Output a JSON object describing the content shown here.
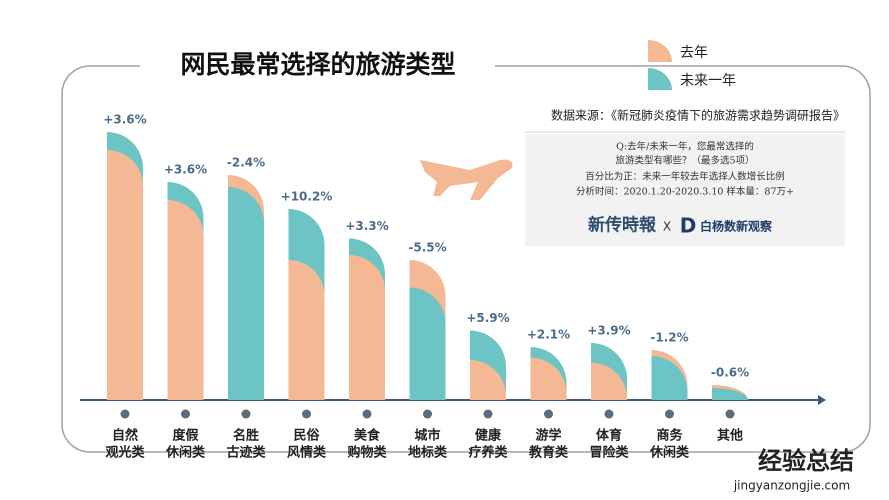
{
  "chart_data": {
    "type": "bar",
    "title": "网民最常选择的旅游类型",
    "source": "数据来源：《新冠肺炎疫情下的旅游需求趋势调研报告》",
    "notes": [
      "Q:去年/未来一年，您最常选择的",
      "旅游类型有哪些？（最多选5项）",
      "百分比为正：未来一年较去年选择人数增长比例",
      "分析时间：2020.1.20-2020.3.10   样本量：87万+"
    ],
    "logos": {
      "left": "新传時報",
      "joiner": "X",
      "mark": "D",
      "right": "白杨数新观察"
    },
    "watermark": {
      "main": "经验总结",
      "url": "jingyanzongjie.com"
    },
    "categories": [
      [
        "自然",
        "观光类"
      ],
      [
        "度假",
        "休闲类"
      ],
      [
        "名胜",
        "古迹类"
      ],
      [
        "民俗",
        "风情类"
      ],
      [
        "美食",
        "购物类"
      ],
      [
        "城市",
        "地标类"
      ],
      [
        "健康",
        "疗养类"
      ],
      [
        "游学",
        "教育类"
      ],
      [
        "体育",
        "冒险类"
      ],
      [
        "商务",
        "休闲类"
      ],
      [
        "其他"
      ]
    ],
    "series": [
      {
        "name": "去年",
        "color": "#f5b894",
        "values": [
          50.0,
          40.0,
          45.0,
          28.0,
          29.0,
          28.0,
          8.0,
          8.5,
          7.5,
          10.0,
          3.0
        ]
      },
      {
        "name": "未来一年",
        "color": "#6cc4c4",
        "values": [
          53.6,
          43.6,
          42.6,
          38.2,
          32.3,
          22.5,
          13.9,
          10.6,
          11.4,
          8.8,
          2.4
        ]
      }
    ],
    "differences": {
      "values": [
        3.6,
        3.6,
        -2.4,
        10.2,
        3.3,
        -5.5,
        5.9,
        2.1,
        3.9,
        -1.2,
        -0.6
      ],
      "value_labels": [
        "+3.6%",
        "+3.6%",
        "-2.4%",
        "+10.2%",
        "+3.3%",
        "-5.5%",
        "+5.9%",
        "+2.1%",
        "+3.9%",
        "-1.2%",
        "-0.6%"
      ]
    },
    "ylim": [
      0,
      60
    ]
  }
}
